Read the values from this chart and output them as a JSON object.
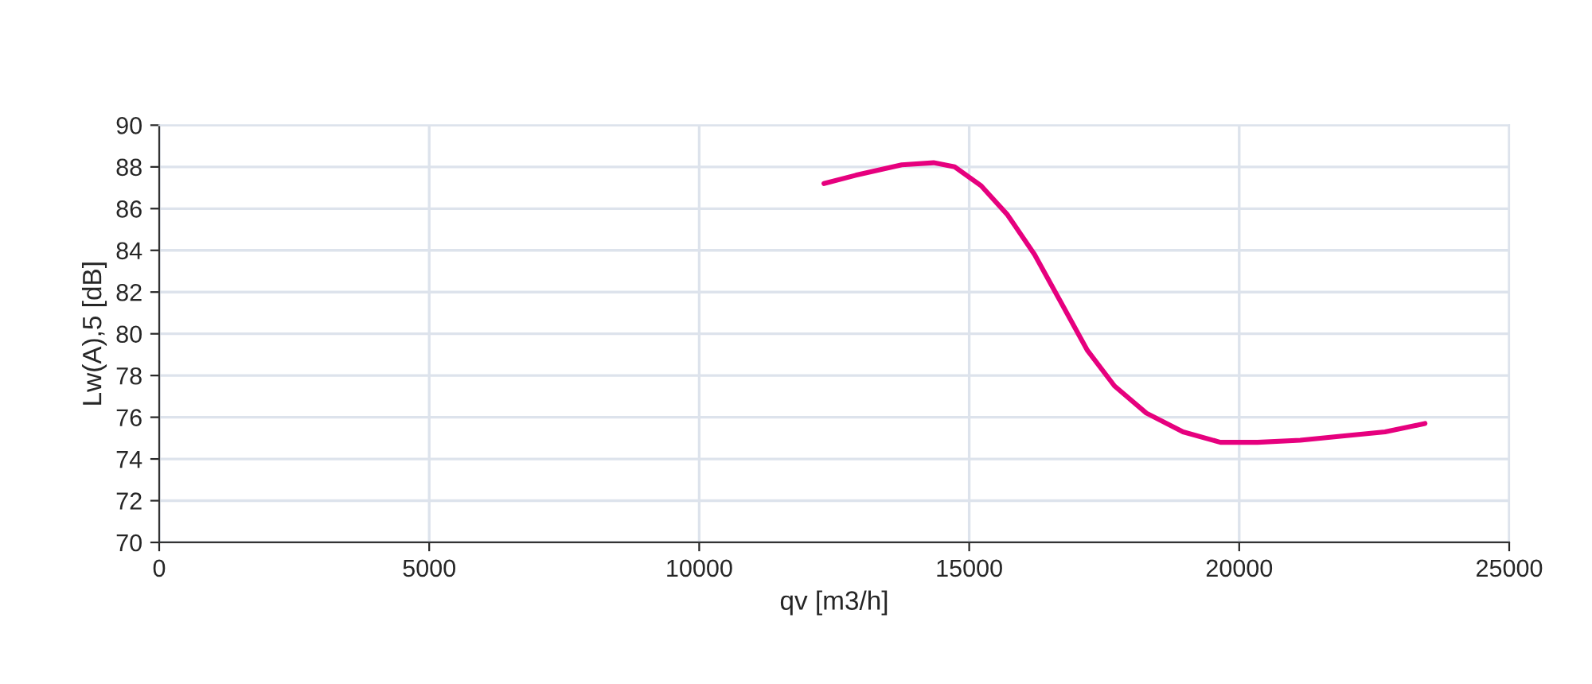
{
  "chart_data": {
    "type": "line",
    "xlabel": "qv [m3/h]",
    "ylabel": "Lw(A),5 [dB]",
    "xlim": [
      0,
      25000
    ],
    "xticks": [
      0,
      5000,
      10000,
      15000,
      20000,
      25000
    ],
    "ylim": [
      70,
      90
    ],
    "yticks": [
      70,
      72,
      74,
      76,
      78,
      80,
      82,
      84,
      86,
      88,
      90
    ],
    "grid": true,
    "marker": "none",
    "line_style": "solid",
    "series": [
      {
        "color": "#e6007e",
        "x": [
          12310,
          12900,
          13750,
          14340,
          14730,
          15220,
          15710,
          16210,
          16700,
          17190,
          17690,
          18280,
          18960,
          19650,
          20340,
          21130,
          21910,
          22700,
          23440
        ],
        "values": [
          87.2,
          87.6,
          88.1,
          88.2,
          88.0,
          87.1,
          85.7,
          83.8,
          81.5,
          79.2,
          77.5,
          76.2,
          75.3,
          74.8,
          74.8,
          74.9,
          75.1,
          75.3,
          75.7
        ]
      }
    ]
  }
}
